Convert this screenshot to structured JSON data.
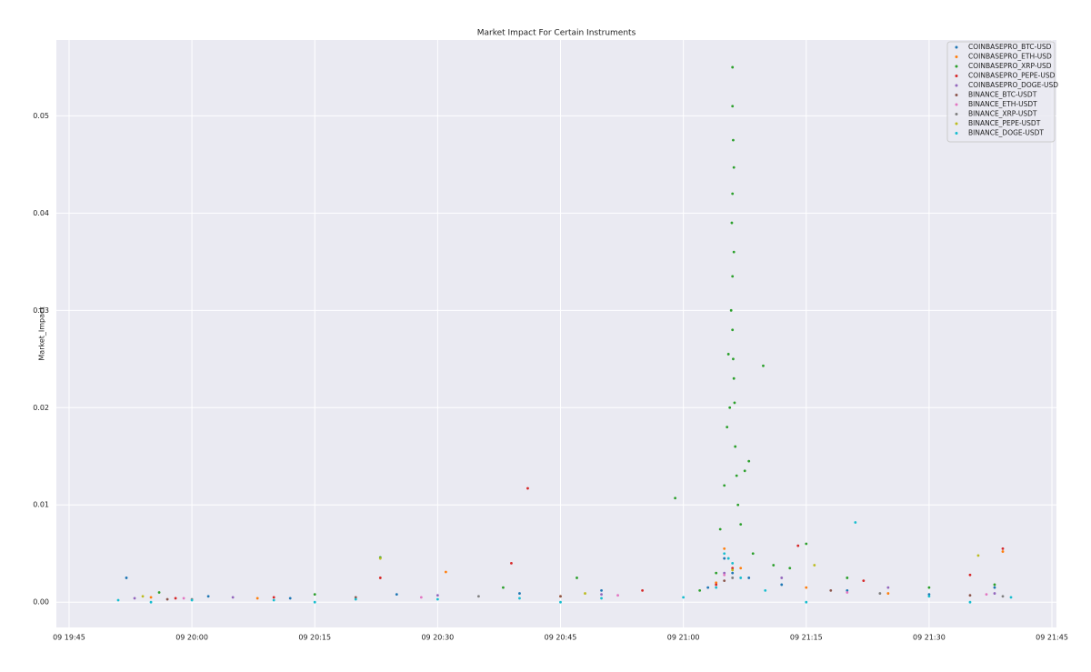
{
  "chart_data": {
    "type": "scatter",
    "title": "Market Impact For Certain Instruments",
    "y_label": "Market_Impact",
    "xlim": [
      "09 19:43:27",
      "09 21:45:33"
    ],
    "ylim": [
      -0.0026,
      0.0578
    ],
    "xticks": [
      "09 19:45",
      "09 20:00",
      "09 20:15",
      "09 20:30",
      "09 20:45",
      "09 21:00",
      "09 21:15",
      "09 21:30",
      "09 21:45"
    ],
    "yticks": [
      {
        "value": 0,
        "label": "0.00"
      },
      0.01,
      0.02,
      0.03,
      0.04,
      0.05
    ],
    "grid": true,
    "legend": "upper right",
    "series": [
      {
        "name": "COINBASEPRO_BTC-USD",
        "color": "#1f77b4",
        "x": [
          "09 19:52",
          "09 20:02",
          "09 20:12",
          "09 20:25",
          "09 20:40",
          "09 20:50",
          "09 21:03",
          "09 21:05",
          "09 21:06",
          "09 21:08",
          "09 21:12",
          "09 21:20",
          "09 21:30",
          "09 21:38"
        ],
        "values": [
          0.0025,
          0.0006,
          0.0004,
          0.0008,
          0.0009,
          0.0012,
          0.0015,
          0.0045,
          0.003,
          0.0025,
          0.0018,
          0.0012,
          0.0008,
          0.0015
        ]
      },
      {
        "name": "COINBASEPRO_ETH-USD",
        "color": "#ff7f0e",
        "x": [
          "09 19:55",
          "09 20:08",
          "09 20:31",
          "09 20:45",
          "09 21:04",
          "09 21:05",
          "09 21:07",
          "09 21:15",
          "09 21:25",
          "09 21:39"
        ],
        "values": [
          0.0005,
          0.0004,
          0.0031,
          0.0006,
          0.002,
          0.0055,
          0.0035,
          0.0015,
          0.0009,
          0.0052
        ]
      },
      {
        "name": "COINBASEPRO_XRP-USD",
        "color": "#2ca02c",
        "x": [
          "09 19:56",
          "09 20:15",
          "09 20:23",
          "09 20:38",
          "09 20:47",
          "09 20:59",
          "09 21:02",
          "09 21:04",
          "09 21:04:30",
          "09 21:05",
          "09 21:05:20",
          "09 21:05:30",
          "09 21:05:40",
          "09 21:05:50",
          "09 21:06",
          "09 21:06",
          "09 21:06:05",
          "09 21:06:10",
          "09 21:06",
          "09 21:05:55",
          "09 21:06:10",
          "09 21:06",
          "09 21:06",
          "09 21:06:05",
          "09 21:06:10",
          "09 21:06:15",
          "09 21:06:20",
          "09 21:06:30",
          "09 21:06:40",
          "09 21:07",
          "09 21:07:30",
          "09 21:08",
          "09 21:09:45",
          "09 21:08:30",
          "09 21:11",
          "09 21:13",
          "09 21:15",
          "09 21:20",
          "09 21:30",
          "09 21:38"
        ],
        "values": [
          0.001,
          0.0008,
          0.0046,
          0.0015,
          0.0025,
          0.0107,
          0.0012,
          0.003,
          0.0075,
          0.012,
          0.018,
          0.0255,
          0.02,
          0.03,
          0.055,
          0.051,
          0.0475,
          0.0447,
          0.042,
          0.039,
          0.036,
          0.0335,
          0.028,
          0.025,
          0.023,
          0.0205,
          0.016,
          0.013,
          0.01,
          0.008,
          0.0135,
          0.0145,
          0.0243,
          0.005,
          0.0038,
          0.0035,
          0.006,
          0.0025,
          0.0015,
          0.0018
        ]
      },
      {
        "name": "COINBASEPRO_PEPE-USD",
        "color": "#d62728",
        "x": [
          "09 19:58",
          "09 20:10",
          "09 20:23",
          "09 20:39",
          "09 20:41",
          "09 20:55",
          "09 21:04",
          "09 21:06",
          "09 21:14",
          "09 21:22",
          "09 21:35",
          "09 21:39"
        ],
        "values": [
          0.0004,
          0.0005,
          0.0025,
          0.004,
          0.0117,
          0.0012,
          0.0018,
          0.0035,
          0.0058,
          0.0022,
          0.0028,
          0.0055
        ]
      },
      {
        "name": "COINBASEPRO_DOGE-USD",
        "color": "#9467bd",
        "x": [
          "09 19:53",
          "09 20:05",
          "09 20:30",
          "09 20:50",
          "09 21:05",
          "09 21:12",
          "09 21:25",
          "09 21:38"
        ],
        "values": [
          0.0004,
          0.0005,
          0.0007,
          0.0008,
          0.003,
          0.0025,
          0.0015,
          0.0009
        ]
      },
      {
        "name": "BINANCE_BTC-USDT",
        "color": "#8c564b",
        "x": [
          "09 19:57",
          "09 20:20",
          "09 20:45",
          "09 21:05",
          "09 21:18",
          "09 21:35"
        ],
        "values": [
          0.0003,
          0.0005,
          0.0006,
          0.0022,
          0.0012,
          0.0007
        ]
      },
      {
        "name": "BINANCE_ETH-USDT",
        "color": "#e377c2",
        "x": [
          "09 19:59",
          "09 20:28",
          "09 20:52",
          "09 21:05",
          "09 21:20",
          "09 21:37"
        ],
        "values": [
          0.0004,
          0.0005,
          0.0007,
          0.0028,
          0.001,
          0.0008
        ]
      },
      {
        "name": "BINANCE_XRP-USDT",
        "color": "#7f7f7f",
        "x": [
          "09 20:00",
          "09 20:35",
          "09 21:06",
          "09 21:24",
          "09 21:39"
        ],
        "values": [
          0.0003,
          0.0006,
          0.0025,
          0.0009,
          0.0006
        ]
      },
      {
        "name": "BINANCE_PEPE-USDT",
        "color": "#bcbd22",
        "x": [
          "09 19:54",
          "09 20:23",
          "09 20:48",
          "09 21:06",
          "09 21:16",
          "09 21:36"
        ],
        "values": [
          0.0006,
          0.0045,
          0.0009,
          0.0033,
          0.0038,
          0.0048
        ]
      },
      {
        "name": "BINANCE_DOGE-USDT",
        "color": "#17becf",
        "x": [
          "09 19:51",
          "09 20:00",
          "09 20:10",
          "09 20:20",
          "09 20:30",
          "09 20:40",
          "09 20:50",
          "09 21:00",
          "09 21:04",
          "09 21:05",
          "09 21:05:30",
          "09 21:06",
          "09 21:07",
          "09 21:10",
          "09 21:21",
          "09 21:30",
          "09 21:40",
          "09 19:55",
          "09 20:15",
          "09 20:45",
          "09 21:15",
          "09 21:35"
        ],
        "values": [
          0.0002,
          0.0002,
          0.0002,
          0.0003,
          0.0003,
          0.0004,
          0.0004,
          0.0005,
          0.0015,
          0.005,
          0.0045,
          0.004,
          0.0025,
          0.0012,
          0.0082,
          0.0006,
          0.0005,
          0,
          0,
          0,
          0,
          0
        ]
      }
    ]
  }
}
